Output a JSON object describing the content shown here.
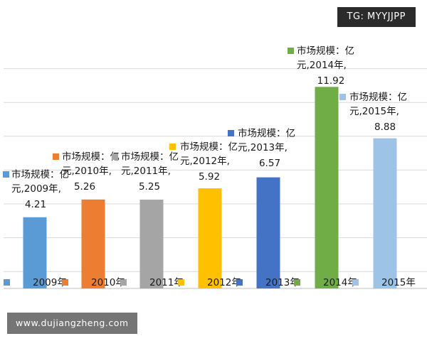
{
  "chart_data": {
    "type": "bar",
    "categories": [
      "2009年",
      "2010年",
      "2011年",
      "2012年",
      "2013年",
      "2014年",
      "2015年"
    ],
    "values": [
      4.21,
      5.26,
      5.25,
      5.92,
      6.57,
      11.92,
      8.88
    ],
    "data_label_prefix": "市场规模：亿元,",
    "data_labels": [
      [
        "市场规模：亿",
        "元,2009年,",
        "4.21"
      ],
      [
        "市场规模：亿",
        "元,2010年,",
        "5.26"
      ],
      [
        "市场规模：亿",
        "元,2011年,",
        "5.25"
      ],
      [
        "市场规模：亿",
        "元,2012年,",
        "5.92"
      ],
      [
        "市场规模：亿",
        "元,2013年,",
        "6.57"
      ],
      [
        "市场规模：亿",
        "元,2014年,",
        "11.92"
      ],
      [
        "市场规模：亿",
        "元,2015年,",
        "8.88"
      ]
    ],
    "colors": [
      "#5b9bd5",
      "#ed7d31",
      "#a5a5a5",
      "#ffc000",
      "#4472c4",
      "#70ad47",
      "#9dc3e6"
    ],
    "ylim": [
      0,
      14
    ],
    "grid": true,
    "legend": "bottom",
    "title": "",
    "xlabel": "",
    "ylabel": ""
  },
  "watermarks": {
    "top_right": "TG: MYYJJPP",
    "bottom_left": "www.dujiangzheng.com"
  }
}
